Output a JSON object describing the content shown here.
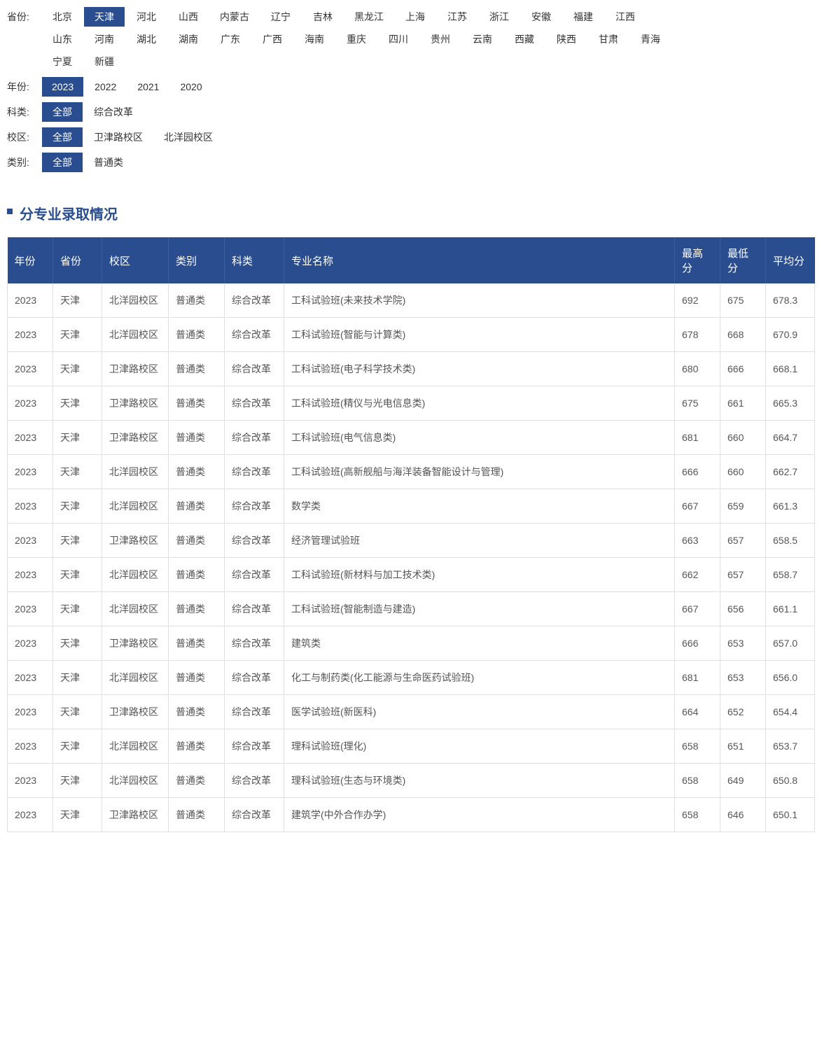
{
  "filters": [
    {
      "label": "省份:",
      "active": "天津",
      "options": [
        "北京",
        "天津",
        "河北",
        "山西",
        "内蒙古",
        "辽宁",
        "吉林",
        "黑龙江",
        "上海",
        "江苏",
        "浙江",
        "安徽",
        "福建",
        "江西",
        "山东",
        "河南",
        "湖北",
        "湖南",
        "广东",
        "广西",
        "海南",
        "重庆",
        "四川",
        "贵州",
        "云南",
        "西藏",
        "陕西",
        "甘肃",
        "青海",
        "宁夏",
        "新疆"
      ]
    },
    {
      "label": "年份:",
      "active": "2023",
      "options": [
        "2023",
        "2022",
        "2021",
        "2020"
      ]
    },
    {
      "label": "科类:",
      "active": "全部",
      "options": [
        "全部",
        "综合改革"
      ]
    },
    {
      "label": "校区:",
      "active": "全部",
      "options": [
        "全部",
        "卫津路校区",
        "北洋园校区"
      ]
    },
    {
      "label": "类别:",
      "active": "全部",
      "options": [
        "全部",
        "普通类"
      ]
    }
  ],
  "section_title": "分专业录取情况",
  "columns": [
    "年份",
    "省份",
    "校区",
    "类别",
    "科类",
    "专业名称",
    "最高分",
    "最低分",
    "平均分"
  ],
  "rows": [
    [
      "2023",
      "天津",
      "北洋园校区",
      "普通类",
      "综合改革",
      "工科试验班(未来技术学院)",
      "692",
      "675",
      "678.3"
    ],
    [
      "2023",
      "天津",
      "北洋园校区",
      "普通类",
      "综合改革",
      "工科试验班(智能与计算类)",
      "678",
      "668",
      "670.9"
    ],
    [
      "2023",
      "天津",
      "卫津路校区",
      "普通类",
      "综合改革",
      "工科试验班(电子科学技术类)",
      "680",
      "666",
      "668.1"
    ],
    [
      "2023",
      "天津",
      "卫津路校区",
      "普通类",
      "综合改革",
      "工科试验班(精仪与光电信息类)",
      "675",
      "661",
      "665.3"
    ],
    [
      "2023",
      "天津",
      "卫津路校区",
      "普通类",
      "综合改革",
      "工科试验班(电气信息类)",
      "681",
      "660",
      "664.7"
    ],
    [
      "2023",
      "天津",
      "北洋园校区",
      "普通类",
      "综合改革",
      "工科试验班(高新舰船与海洋装备智能设计与管理)",
      "666",
      "660",
      "662.7"
    ],
    [
      "2023",
      "天津",
      "北洋园校区",
      "普通类",
      "综合改革",
      "数学类",
      "667",
      "659",
      "661.3"
    ],
    [
      "2023",
      "天津",
      "卫津路校区",
      "普通类",
      "综合改革",
      "经济管理试验班",
      "663",
      "657",
      "658.5"
    ],
    [
      "2023",
      "天津",
      "北洋园校区",
      "普通类",
      "综合改革",
      "工科试验班(新材料与加工技术类)",
      "662",
      "657",
      "658.7"
    ],
    [
      "2023",
      "天津",
      "北洋园校区",
      "普通类",
      "综合改革",
      "工科试验班(智能制造与建造)",
      "667",
      "656",
      "661.1"
    ],
    [
      "2023",
      "天津",
      "卫津路校区",
      "普通类",
      "综合改革",
      "建筑类",
      "666",
      "653",
      "657.0"
    ],
    [
      "2023",
      "天津",
      "北洋园校区",
      "普通类",
      "综合改革",
      "化工与制药类(化工能源与生命医药试验班)",
      "681",
      "653",
      "656.0"
    ],
    [
      "2023",
      "天津",
      "卫津路校区",
      "普通类",
      "综合改革",
      "医学试验班(新医科)",
      "664",
      "652",
      "654.4"
    ],
    [
      "2023",
      "天津",
      "北洋园校区",
      "普通类",
      "综合改革",
      "理科试验班(理化)",
      "658",
      "651",
      "653.7"
    ],
    [
      "2023",
      "天津",
      "北洋园校区",
      "普通类",
      "综合改革",
      "理科试验班(生态与环境类)",
      "658",
      "649",
      "650.8"
    ],
    [
      "2023",
      "天津",
      "卫津路校区",
      "普通类",
      "综合改革",
      "建筑学(中外合作办学)",
      "658",
      "646",
      "650.1"
    ]
  ],
  "colors": {
    "primary": "#2a4d8f",
    "header_border": "#3a5d9f",
    "cell_border": "#e0e0e0",
    "text": "#333333",
    "cell_text": "#555555"
  }
}
